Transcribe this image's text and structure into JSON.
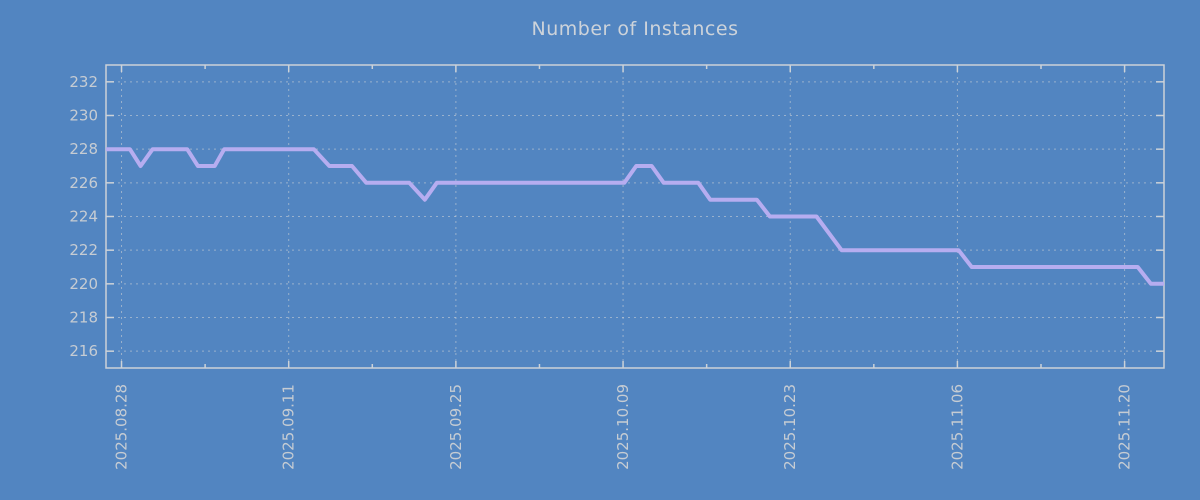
{
  "title": "Number of Instances",
  "colors": {
    "background": "#5285c1",
    "line": "#b6adf0",
    "frame": "#ccd2d8",
    "grid": "#c9cfd5",
    "text": "#c6ccd3"
  },
  "chart_data": {
    "type": "line",
    "title": "Number of Instances",
    "legend": "none",
    "x_axis": {
      "unit": "days since 2025-08-28",
      "range": [
        -1.3,
        87.3
      ],
      "major_ticks": [
        0,
        14,
        28,
        42,
        56,
        70,
        84
      ],
      "major_tick_labels": [
        "2025.08.28",
        "2025.09.11",
        "2025.09.25",
        "2025.10.09",
        "2025.10.23",
        "2025.11.06",
        "2025.11.20"
      ],
      "minor_ticks": [
        7,
        21,
        35,
        49,
        63,
        77
      ],
      "grid_on_major_ticks": true
    },
    "y_axis": {
      "range": [
        215,
        233
      ],
      "ticks": [
        216,
        218,
        220,
        222,
        224,
        226,
        228,
        230,
        232
      ],
      "grid_on_ticks": true
    },
    "grid_style": "dashed",
    "series": [
      {
        "name": "Number of Instances",
        "color": "#b6adf0",
        "points": [
          [
            -1.3,
            228
          ],
          [
            0.7,
            228
          ],
          [
            1.6,
            227
          ],
          [
            2.6,
            228
          ],
          [
            5.5,
            228
          ],
          [
            6.4,
            227
          ],
          [
            7.8,
            227
          ],
          [
            8.6,
            228
          ],
          [
            16.1,
            228
          ],
          [
            17.4,
            227
          ],
          [
            19.3,
            227
          ],
          [
            20.5,
            226
          ],
          [
            24.1,
            226
          ],
          [
            25.4,
            225
          ],
          [
            26.4,
            226
          ],
          [
            42.1,
            226
          ],
          [
            43.1,
            227
          ],
          [
            44.4,
            227
          ],
          [
            45.4,
            226
          ],
          [
            48.3,
            226
          ],
          [
            49.3,
            225
          ],
          [
            53.2,
            225
          ],
          [
            54.3,
            224
          ],
          [
            58.2,
            224
          ],
          [
            60.3,
            222
          ],
          [
            70.1,
            222
          ],
          [
            71.2,
            221
          ],
          [
            85.1,
            221
          ],
          [
            86.2,
            220
          ],
          [
            87.3,
            220
          ]
        ]
      }
    ]
  }
}
